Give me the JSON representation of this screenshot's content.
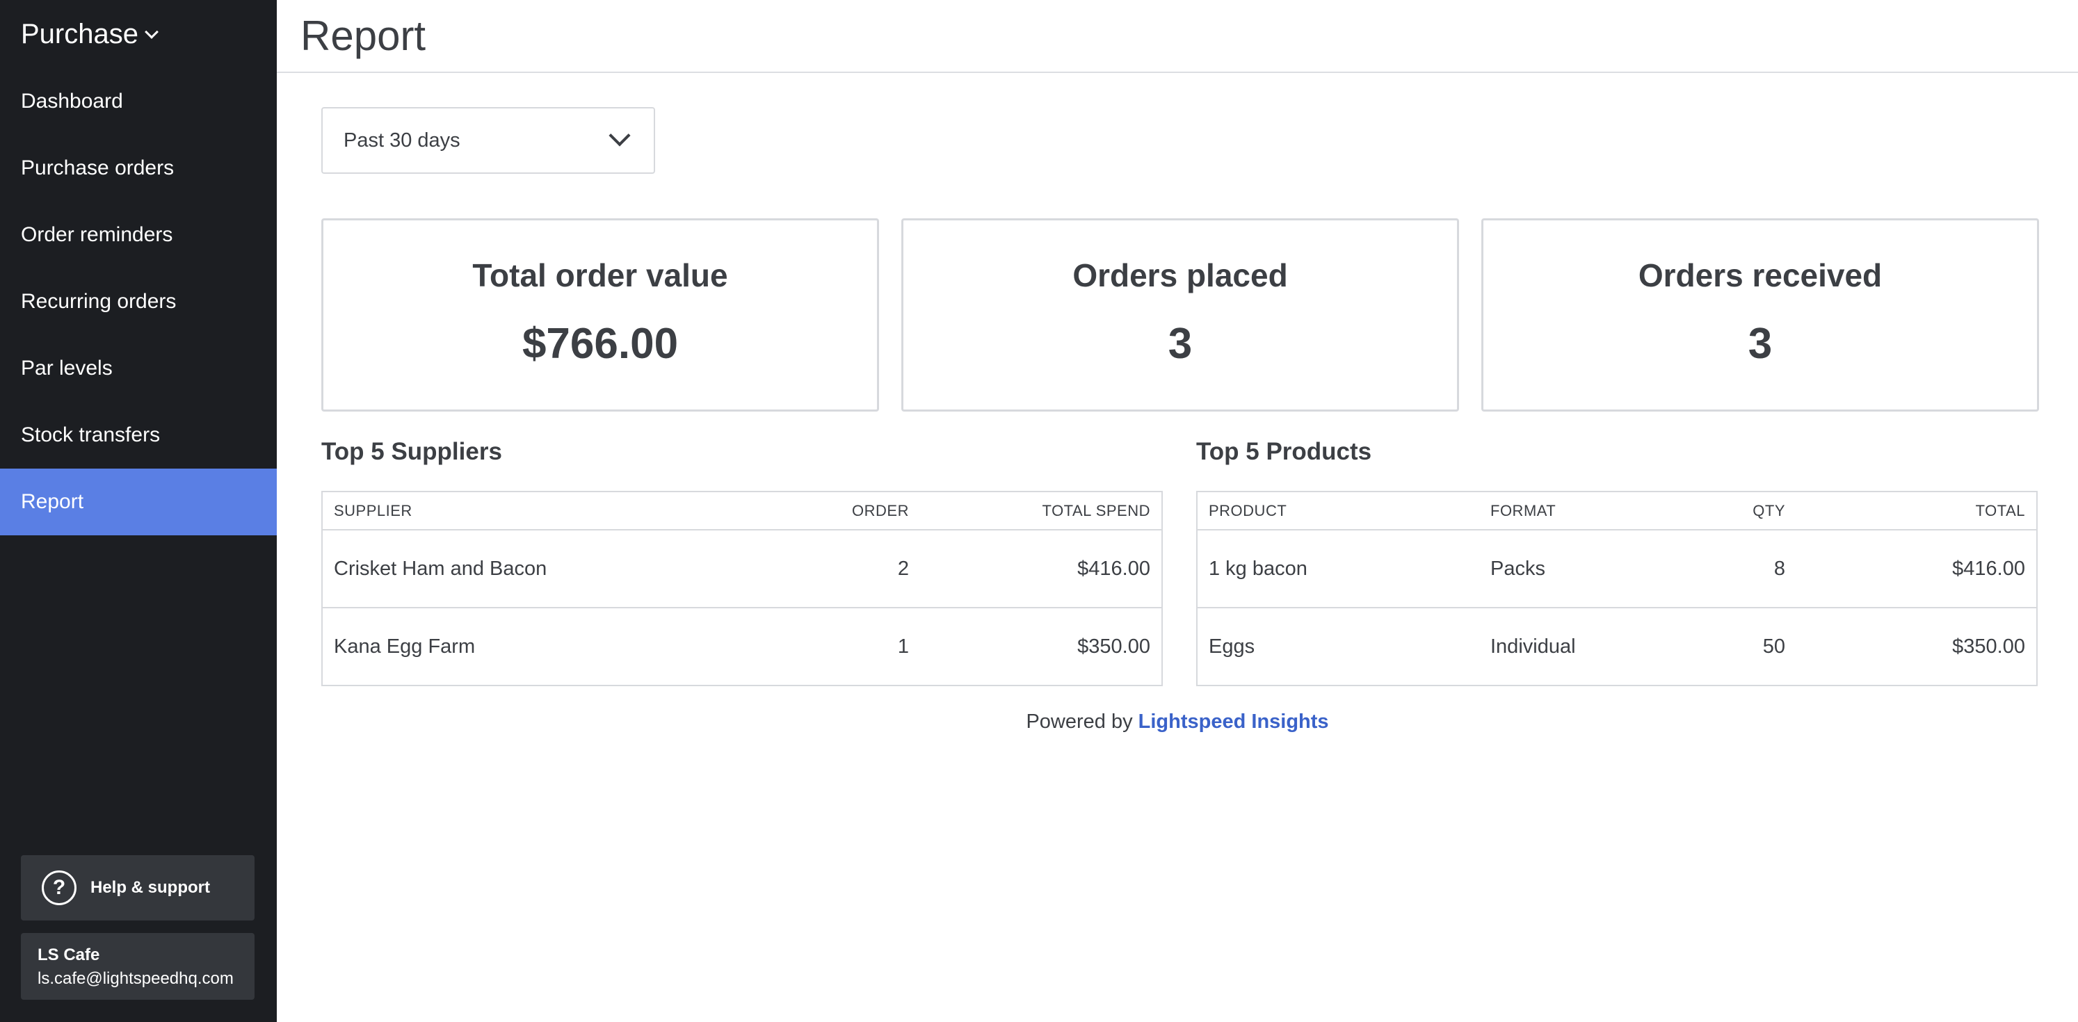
{
  "sidebar": {
    "app_name": "Purchase",
    "items": [
      {
        "label": "Dashboard"
      },
      {
        "label": "Purchase orders"
      },
      {
        "label": "Order reminders"
      },
      {
        "label": "Recurring orders"
      },
      {
        "label": "Par levels"
      },
      {
        "label": "Stock transfers"
      },
      {
        "label": "Report",
        "active": true
      }
    ],
    "help_label": "Help & support",
    "help_icon": "question-circle-icon",
    "account": {
      "name": "LS Cafe",
      "email": "ls.cafe@lightspeedhq.com"
    }
  },
  "header": {
    "title": "Report"
  },
  "filter": {
    "period": "Past 30 days"
  },
  "stats": [
    {
      "label": "Total order value",
      "value": "$766.00"
    },
    {
      "label": "Orders placed",
      "value": "3"
    },
    {
      "label": "Orders received",
      "value": "3"
    }
  ],
  "suppliers": {
    "title": "Top 5 Suppliers",
    "columns": [
      "SUPPLIER",
      "ORDER",
      "TOTAL SPEND"
    ],
    "rows": [
      {
        "supplier": "Crisket Ham and Bacon",
        "order": "2",
        "total": "$416.00"
      },
      {
        "supplier": "Kana Egg Farm",
        "order": "1",
        "total": "$350.00"
      }
    ]
  },
  "products": {
    "title": "Top 5 Products",
    "columns": [
      "PRODUCT",
      "FORMAT",
      "QTY",
      "TOTAL"
    ],
    "rows": [
      {
        "product": "1 kg bacon",
        "format": "Packs",
        "qty": "8",
        "total": "$416.00"
      },
      {
        "product": "Eggs",
        "format": "Individual",
        "qty": "50",
        "total": "$350.00"
      }
    ]
  },
  "footer": {
    "prefix": "Powered by",
    "link": "Lightspeed Insights"
  },
  "colors": {
    "sidebar_bg": "#1c1e22",
    "active_item": "#5a7fe4",
    "link": "#3a62c9"
  }
}
